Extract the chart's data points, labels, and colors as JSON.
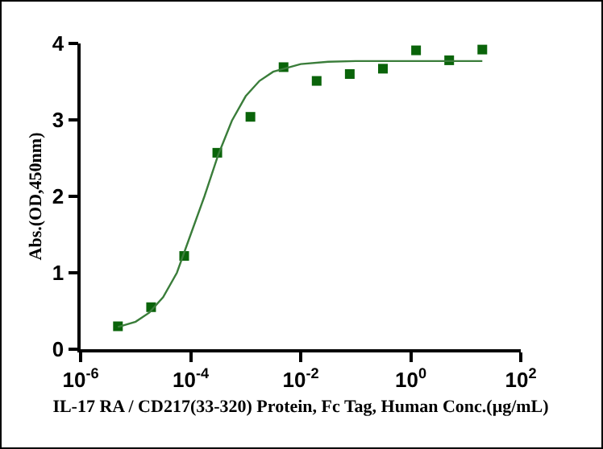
{
  "chart_data": {
    "type": "scatter",
    "xlabel": "IL-17 RA / CD217(33-320) Protein, Fc Tag, Human Conc.(μg/mL)",
    "ylabel": "Abs.(OD,450nm)",
    "log": "x",
    "grid": false,
    "xlim": [
      1e-06,
      100
    ],
    "xticks": [
      {
        "value": 1e-06,
        "label": "10$^{-6}$"
      },
      {
        "value": 0.0001,
        "label": "10$^{-4}$"
      },
      {
        "value": 0.01,
        "label": "10$^{-2}$"
      },
      {
        "value": 1,
        "label": "10$^{0}$"
      },
      {
        "value": 100,
        "label": "10$^{2}$"
      }
    ],
    "ylim": [
      0,
      4
    ],
    "yticks": [
      0,
      1,
      2,
      3,
      4
    ],
    "series": [
      {
        "marker": "square",
        "color": "#0a640a",
        "x": [
          4.77e-06,
          1.91e-05,
          7.63e-05,
          0.000305,
          0.00122,
          0.00488,
          0.0195,
          0.078,
          0.3125,
          1.25,
          5,
          20
        ],
        "values": [
          0.3,
          0.55,
          1.22,
          2.57,
          3.04,
          3.69,
          3.51,
          3.6,
          3.67,
          3.91,
          3.78,
          3.92
        ]
      },
      {
        "type": "line",
        "marker": "none",
        "color": "#3a7d3a",
        "x": [
          4.77e-06,
          1e-05,
          1.78e-05,
          3.16e-05,
          5.62e-05,
          0.0001,
          0.000178,
          0.000316,
          0.000562,
          0.001,
          0.00178,
          0.00316,
          0.01,
          0.0316,
          0.1,
          1,
          20
        ],
        "values": [
          0.29,
          0.36,
          0.48,
          0.68,
          1.0,
          1.5,
          2.0,
          2.54,
          2.99,
          3.31,
          3.51,
          3.63,
          3.73,
          3.76,
          3.77,
          3.77,
          3.77
        ]
      }
    ]
  }
}
